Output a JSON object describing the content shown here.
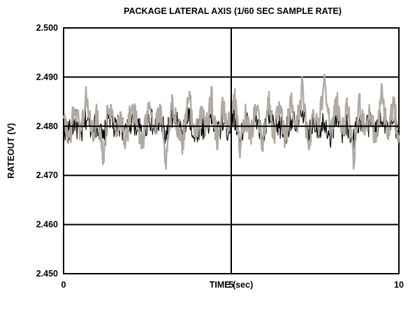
{
  "chart_data": {
    "type": "line",
    "title": "PACKAGE LATERAL AXIS (1/60 SEC SAMPLE RATE)",
    "xlabel": "TIME (sec)",
    "ylabel": "RATEOUT (V)",
    "xlim": [
      0,
      10
    ],
    "ylim": [
      2.45,
      2.5
    ],
    "x_ticks": [
      "0",
      "5",
      "10"
    ],
    "y_ticks": [
      "2.500",
      "2.490",
      "2.480",
      "2.470",
      "2.460",
      "2.450"
    ],
    "grid": true,
    "legend": "none",
    "sample_interval_sec": 0.0166667,
    "series": [
      {
        "color": "#000000",
        "mean": 2.4803,
        "min": 2.4738,
        "max": 2.489,
        "values": [
          2.4801,
          2.4785,
          2.4812,
          2.4776,
          2.482,
          2.4796,
          2.4803,
          2.4768,
          2.4829,
          2.479,
          2.4807,
          2.4782,
          2.4815,
          2.4799,
          2.4774,
          2.4824,
          2.4793,
          2.4808,
          2.4779,
          2.4817,
          2.4802,
          2.4787,
          2.4833,
          2.4771,
          2.4805,
          2.4796,
          2.4819,
          2.4783,
          2.481,
          2.4791,
          2.4826,
          2.4777,
          2.4806,
          2.4798,
          2.4814,
          2.4769,
          2.4822,
          2.4795,
          2.4801,
          2.4784,
          2.4818,
          2.4792,
          2.4842,
          2.4775,
          2.4809,
          2.4797,
          2.4813,
          2.478,
          2.4825,
          2.4789,
          2.4804,
          2.4773,
          2.4816,
          2.4799,
          2.4806,
          2.4786,
          2.4829,
          2.4791,
          2.4802,
          2.4778
        ]
      },
      {
        "color": "#b0aaa2",
        "mean": 2.481,
        "min": 2.4713,
        "max": 2.4908,
        "values": [
          2.4812,
          2.4776,
          2.4838,
          2.479,
          2.4862,
          2.4784,
          2.4825,
          2.4741,
          2.4852,
          2.4796,
          2.4818,
          2.477,
          2.4846,
          2.4801,
          2.4758,
          2.4867,
          2.4788,
          2.483,
          2.4713,
          2.4841,
          2.4806,
          2.4765,
          2.4873,
          2.4779,
          2.4827,
          2.4794,
          2.4858,
          2.4772,
          2.4834,
          2.48,
          2.4866,
          2.4752,
          2.4822,
          2.4789,
          2.4848,
          2.4761,
          2.4857,
          2.4783,
          2.4836,
          2.4769,
          2.4851,
          2.4796,
          2.4879,
          2.4754,
          2.4829,
          2.4808,
          2.4908,
          2.4773,
          2.4861,
          2.4785,
          2.4839,
          2.4721,
          2.4854,
          2.4797,
          2.4826,
          2.4766,
          2.487,
          2.4781,
          2.4845,
          2.4775
        ]
      }
    ]
  }
}
